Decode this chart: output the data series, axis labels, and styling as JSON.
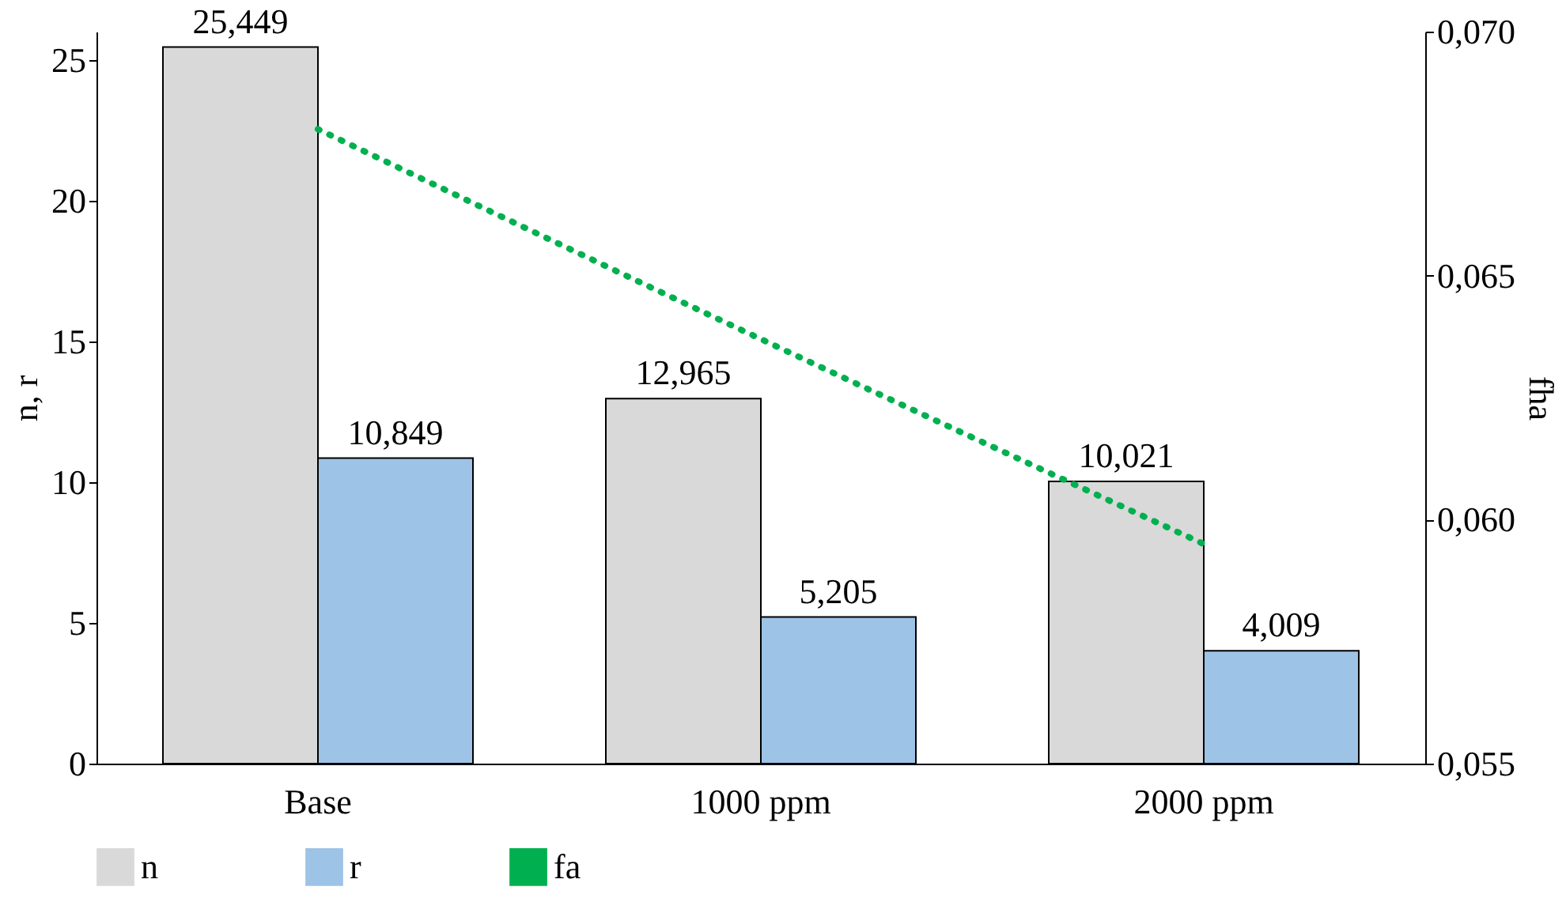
{
  "chart_data": {
    "type": "bar",
    "categories": [
      "Base",
      "1000 ppm",
      "2000 ppm"
    ],
    "ylabel": "n, r",
    "y2label": "fha",
    "series": [
      {
        "name": "n",
        "color": "#d9d9d9",
        "values": [
          25.449,
          12.965,
          10.021
        ],
        "value_labels": [
          "25,449",
          "12,965",
          "10,021"
        ]
      },
      {
        "name": "r",
        "color": "#9dc3e6",
        "values": [
          10.849,
          5.205,
          4.009
        ],
        "value_labels": [
          "10,849",
          "5,205",
          "4,009"
        ]
      },
      {
        "name": "fa",
        "type": "line",
        "axis": "y2",
        "color": "#00b050",
        "line_style": "dotted",
        "values": [
          0.068,
          0.0637,
          0.0595
        ]
      }
    ],
    "ylim": [
      0,
      26
    ],
    "yticks": [
      0,
      5,
      10,
      15,
      20,
      25
    ],
    "y2lim": [
      0.055,
      0.07
    ],
    "y2ticks": [
      {
        "value": 0.055,
        "label": "0,055"
      },
      {
        "value": 0.06,
        "label": "0,060"
      },
      {
        "value": 0.065,
        "label": "0,065"
      },
      {
        "value": 0.07,
        "label": "0,070"
      }
    ],
    "grid": false,
    "legend": "bottom"
  }
}
